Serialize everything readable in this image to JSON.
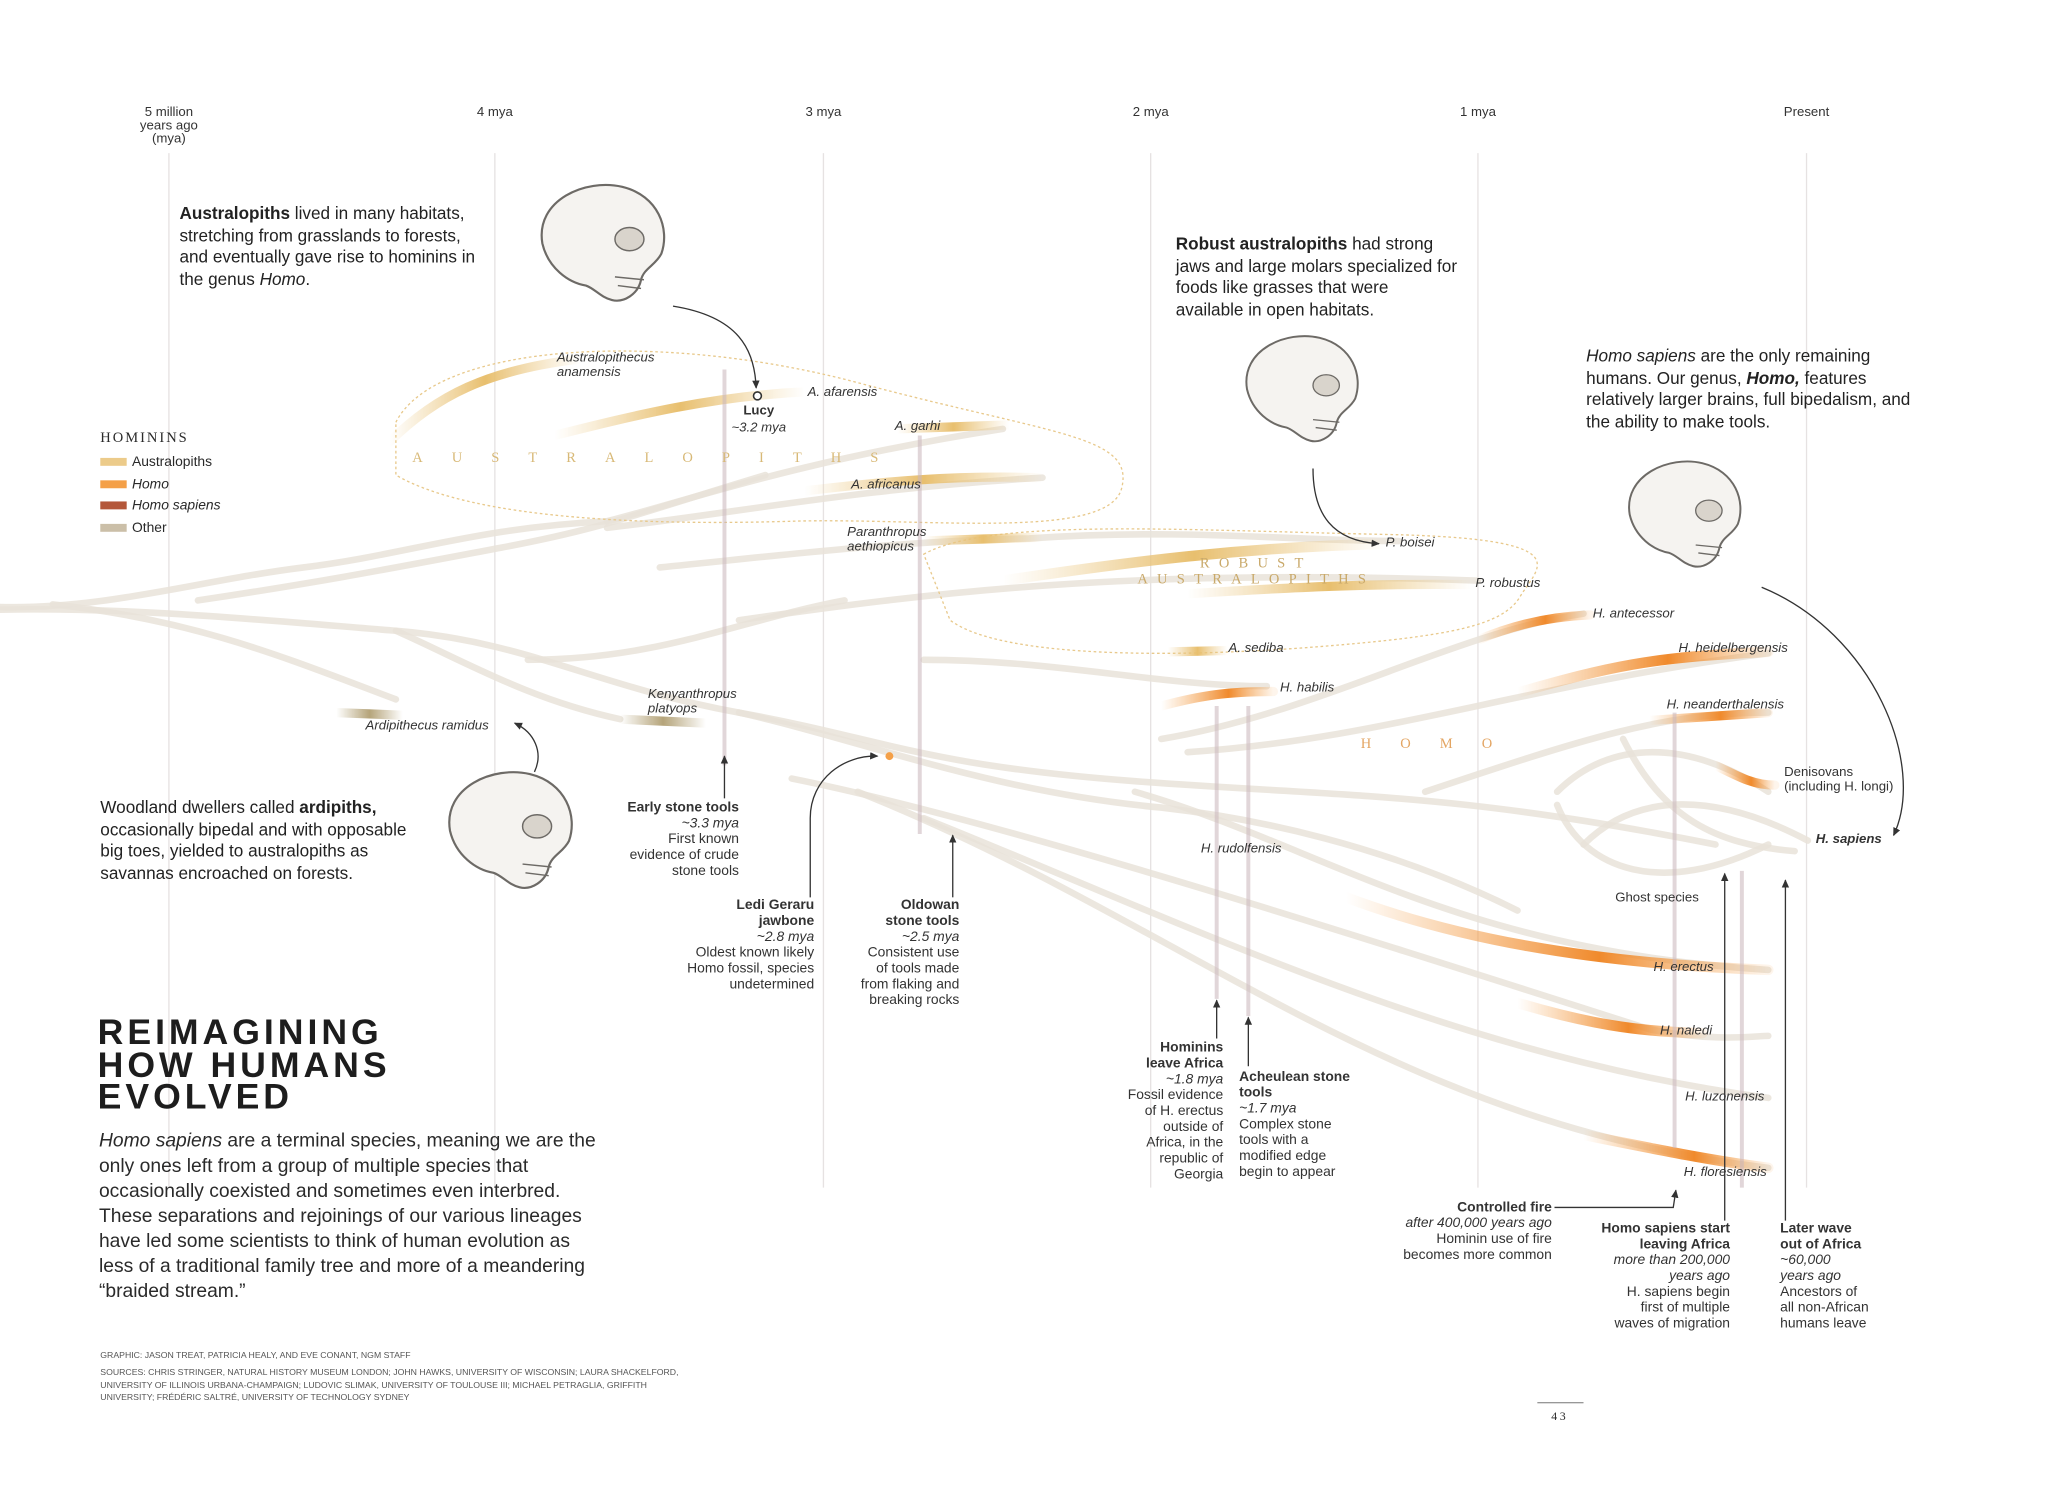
{
  "timeline": [
    "5 million\nyears ago\n(mya)",
    "4 mya",
    "3 mya",
    "2 mya",
    "1 mya",
    "Present"
  ],
  "legend": {
    "title": "HOMININS",
    "items": [
      {
        "label": "Australopiths",
        "color": "#eccb8a"
      },
      {
        "label": "Homo",
        "color": "#f4a048"
      },
      {
        "label": "Homo sapiens",
        "color": "#b4573a"
      },
      {
        "label": "Other",
        "color": "#cbbfa8"
      }
    ]
  },
  "notes": [
    [
      "Australopiths",
      " lived in many habitats, stretching from grasslands to forests, and eventually gave rise to hominins in the genus ",
      "Homo",
      "."
    ],
    [
      "Robust australopiths",
      " had strong jaws and large molars specialized for foods like grasses that were available in open habitats."
    ],
    [
      "Homo sapiens",
      " are the only remaining humans. Our genus, ",
      "Homo,",
      " features relatively larger brains, full bipedalism, and the ability to make tools."
    ],
    [
      "Woodland dwellers called ",
      "ardipiths,",
      " occasionally bipedal and with opposable big toes, yielded to australopiths as savannas encroached on forests."
    ]
  ],
  "groups": [
    "AUSTRALOPITHS",
    "ROBUST\nAUSTRALOPITHS",
    "HOMO"
  ],
  "species": [
    "Australopithecus\nanamensis",
    "A. afarensis",
    "A. garhi",
    "A. africanus",
    "Paranthropus\naethiopicus",
    "P. boisei",
    "P. robustus",
    "H. antecessor",
    "A. sediba",
    "H. heidelbergensis",
    "H. habilis",
    "Kenyanthropus\nplatyops",
    "H. neanderthalensis",
    "Ardipithecus ramidus",
    "Denisovans\n(including H. longi)",
    "H. sapiens",
    "H. rudolfensis",
    "Ghost species",
    "H. erectus",
    "H. naledi",
    "H. luzonensis",
    "H. floresiensis"
  ],
  "lucy": {
    "name": "Lucy",
    "date": "~3.2 mya"
  },
  "events": [
    {
      "title": "Early stone tools",
      "date": "~3.3 mya",
      "text": "First known\nevidence of crude\nstone tools"
    },
    {
      "title": "Ledi Geraru\njawbone",
      "date": "~2.8 mya",
      "text": "Oldest known likely\nHomo fossil, species\nundetermined"
    },
    {
      "title": "Oldowan\nstone tools",
      "date": "~2.5 mya",
      "text": "Consistent use\nof tools made\nfrom flaking and\nbreaking rocks"
    },
    {
      "title": "Hominins\nleave Africa",
      "date": "~1.8 mya",
      "text": "Fossil evidence\nof H. erectus\noutside of\nAfrica, in the\nrepublic of\nGeorgia"
    },
    {
      "title": "Acheulean stone\ntools",
      "date": "~1.7 mya",
      "text": "Complex stone\ntools with a\nmodified edge\nbegin to appear"
    },
    {
      "title": "Controlled fire",
      "date": "after 400,000 years ago",
      "text": "Hominin use of fire\nbecomes more common"
    },
    {
      "title": "Homo sapiens start\nleaving Africa",
      "date": "more than 200,000\nyears ago",
      "text": "H. sapiens begin\nfirst of multiple\nwaves of migration"
    },
    {
      "title": "Later wave\nout of Africa",
      "date": "~60,000\nyears ago",
      "text": "Ancestors of\nall non-African\nhumans leave"
    }
  ],
  "title": "REIMAGINING\nHOW HUMANS\nEVOLVED",
  "body": [
    "Homo sapiens",
    " are a terminal species, meaning we are the only ones left from a group of multiple species that occasionally coexisted and sometimes even interbred. These separations and rejoinings of our various lineages have led some scientists to think of human evolution as less of a traditional family tree and more of a meandering “braided stream.”"
  ],
  "credits": [
    "GRAPHIC: JASON TREAT, PATRICIA HEALY, AND EVE CONANT, NGM STAFF",
    "SOURCES: CHRIS STRINGER, NATURAL HISTORY MUSEUM LONDON; JOHN HAWKS, UNIVERSITY OF WISCONSIN; LAURA SHACKELFORD, UNIVERSITY OF ILLINOIS URBANA-CHAMPAIGN; LUDOVIC SLIMAK, UNIVERSITY OF TOULOUSE III; MICHAEL PETRAGLIA, GRIFFITH UNIVERSITY; FRÉDÉRIC SALTRÉ, UNIVERSITY OF TECHNOLOGY SYDNEY"
  ],
  "page_number": "43"
}
